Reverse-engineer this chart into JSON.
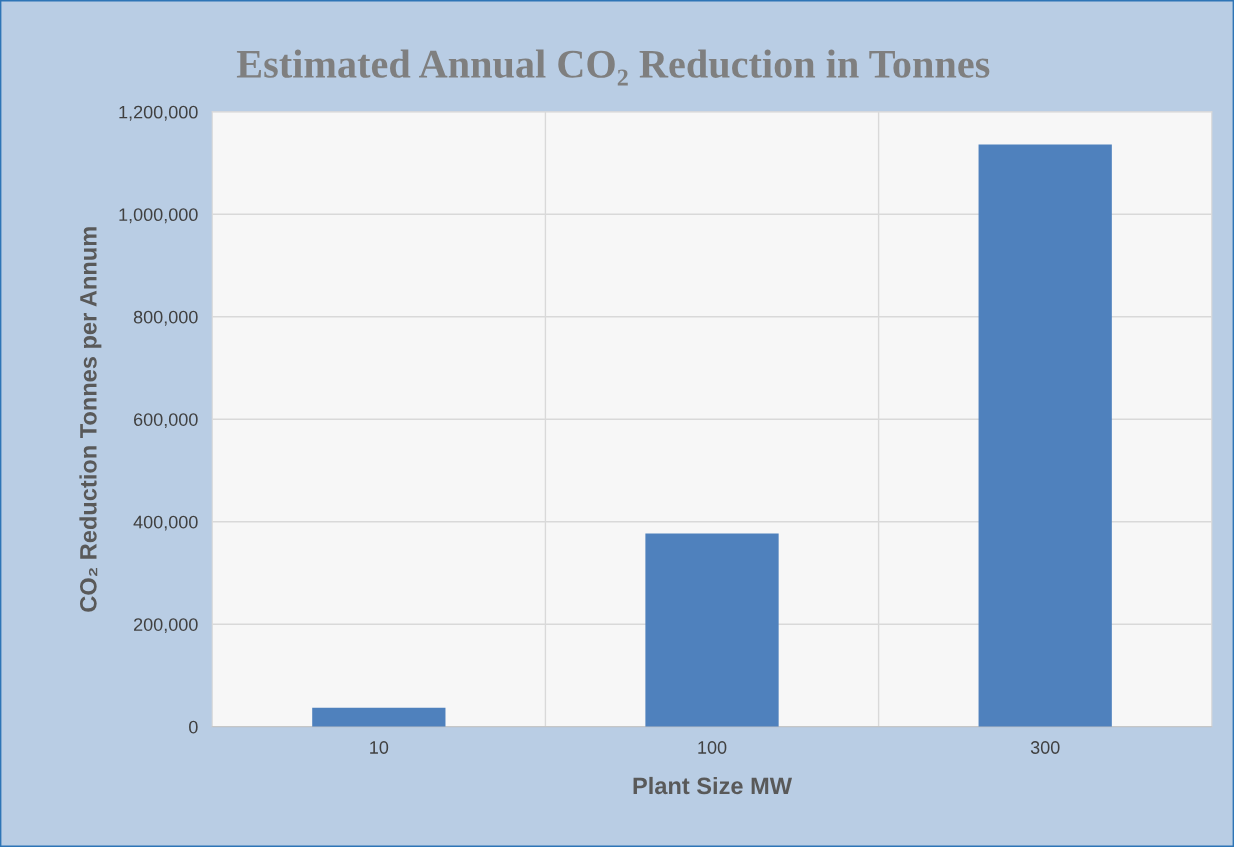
{
  "chart_data": {
    "type": "bar",
    "title": "Estimated Annual CO₂ Reduction in Tonnes",
    "xlabel": "Plant Size MW",
    "ylabel": "CO₂ Reduction Tonnes per Annum",
    "categories": [
      "10",
      "100",
      "300"
    ],
    "values": [
      37000,
      377000,
      1136000
    ],
    "color": "#4f81bd",
    "ylim": [
      0,
      1200000
    ],
    "yticks": [
      {
        "value": 0,
        "label": "0"
      },
      {
        "value": 200000,
        "label": "200,000"
      },
      {
        "value": 400000,
        "label": "400,000"
      },
      {
        "value": 600000,
        "label": "600,000"
      },
      {
        "value": 800000,
        "label": "800,000"
      },
      {
        "value": 1000000,
        "label": "1,000,000"
      },
      {
        "value": 1200000,
        "label": "1,200,000"
      }
    ],
    "grid": true
  }
}
